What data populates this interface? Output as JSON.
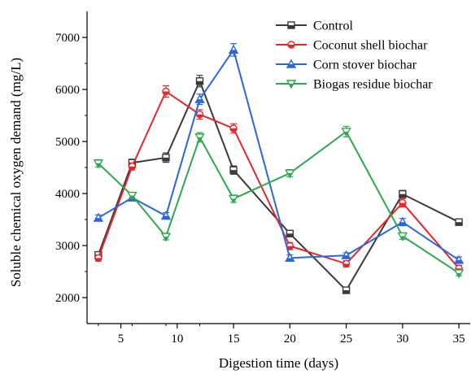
{
  "chart_data": {
    "type": "line",
    "title": "",
    "xlabel": "Digestion time (days)",
    "ylabel": "Soluble chemical oxygen demand  (mg/L)",
    "xlim": [
      2,
      36
    ],
    "ylim": [
      1500,
      7500
    ],
    "x": [
      3,
      6,
      9,
      12,
      15,
      20,
      25,
      30,
      35
    ],
    "x_ticks": [
      5,
      10,
      15,
      20,
      25,
      30,
      35
    ],
    "y_ticks": [
      2000,
      3000,
      4000,
      5000,
      6000,
      7000
    ],
    "grid": false,
    "legend_position": "top-right",
    "series": [
      {
        "name": "Control",
        "color": "#3a3a3a",
        "marker": "square",
        "values": [
          2820,
          4590,
          4690,
          6160,
          4450,
          3230,
          2140,
          3990,
          3450
        ],
        "errors": [
          60,
          70,
          90,
          110,
          80,
          60,
          40,
          70,
          60
        ]
      },
      {
        "name": "Coconut shell biochar",
        "color": "#e8262a",
        "marker": "circle",
        "values": [
          2760,
          4520,
          5960,
          5520,
          5250,
          2990,
          2650,
          3820,
          2560
        ],
        "errors": [
          60,
          70,
          110,
          90,
          90,
          70,
          60,
          80,
          60
        ]
      },
      {
        "name": "Corn stover biochar",
        "color": "#2c67d8",
        "marker": "triangle-up",
        "values": [
          3530,
          3920,
          3570,
          5810,
          6760,
          2760,
          2810,
          3450,
          2720
        ],
        "errors": [
          60,
          60,
          60,
          100,
          120,
          60,
          50,
          70,
          60
        ]
      },
      {
        "name": "Biogas residue biochar",
        "color": "#2ea850",
        "marker": "triangle-down",
        "values": [
          4580,
          3960,
          3170,
          5080,
          3900,
          4390,
          5190,
          3180,
          2470
        ],
        "errors": [
          70,
          60,
          60,
          90,
          70,
          70,
          100,
          60,
          50
        ]
      }
    ]
  }
}
